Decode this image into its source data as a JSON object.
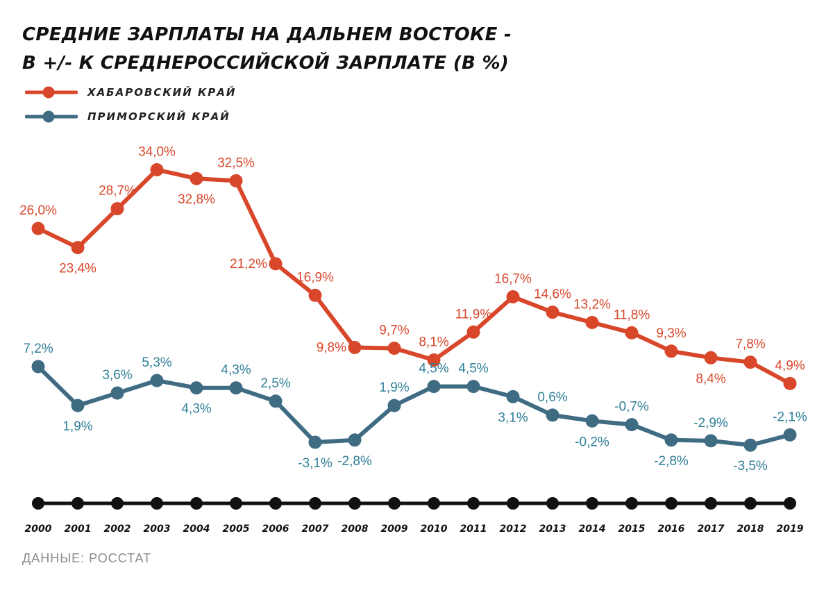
{
  "title_lines": [
    "СРЕДНИЕ ЗАРПЛАТЫ НА ДАЛЬНЕМ ВОСТОКЕ -",
    "В +/- К СРЕДНЕРОССИЙСКОЙ ЗАРПЛАТЕ (В %)"
  ],
  "source": "ДАННЫЕ: РОССТАТ",
  "colors": {
    "khabarovsk": "#d9472b",
    "primorsky": "#3f6b83",
    "axis": "#111111",
    "khabarovsk_label": "#d9472b",
    "primorsky_label": "#2f7f98"
  },
  "chart_data": {
    "type": "line",
    "title": "СРЕДНИЕ ЗАРПЛАТЫ НА ДАЛЬНЕМ ВОСТОКЕ - В +/- К СРЕДНЕРОССИЙСКОЙ ЗАРПЛАТЕ (В %)",
    "categories": [
      "2000",
      "2001",
      "2002",
      "2003",
      "2004",
      "2005",
      "2006",
      "2007",
      "2008",
      "2009",
      "2010",
      "2011",
      "2012",
      "2013",
      "2014",
      "2015",
      "2016",
      "2017",
      "2018",
      "2019"
    ],
    "series": [
      {
        "name": "ХАБАРОВСКИЙ КРАЙ",
        "values": [
          26.0,
          23.4,
          28.7,
          34.0,
          32.8,
          32.5,
          21.2,
          16.9,
          9.8,
          9.7,
          8.1,
          11.9,
          16.7,
          14.6,
          13.2,
          11.8,
          9.3,
          8.4,
          7.8,
          4.9
        ],
        "labels": [
          "26,0%",
          "23,4%",
          "28,7%",
          "34,0%",
          "32,8%",
          "32,5%",
          "21,2%",
          "16,9%",
          "9,8%",
          "9,7%",
          "8,1%",
          "11,9%",
          "16,7%",
          "14,6%",
          "13,2%",
          "11,8%",
          "9,3%",
          "8,4%",
          "7,8%",
          "4,9%"
        ]
      },
      {
        "name": "ПРИМОРСКИЙ КРАЙ",
        "values": [
          7.2,
          1.9,
          3.6,
          5.3,
          4.3,
          4.3,
          2.5,
          -3.1,
          -2.8,
          1.9,
          4.5,
          4.5,
          3.1,
          0.6,
          -0.2,
          -0.7,
          -2.8,
          -2.9,
          -3.5,
          -2.1
        ],
        "labels": [
          "7,2%",
          "1,9%",
          "3,6%",
          "5,3%",
          "4,3%",
          "4,3%",
          "2,5%",
          "-3,1%",
          "-2,8%",
          "1,9%",
          "4,5%",
          "4,5%",
          "3,1%",
          "0,6%",
          "-0,2%",
          "-0,7%",
          "-2,8%",
          "-2,9%",
          "-3,5%",
          "-2,1%"
        ]
      }
    ],
    "legend_position": "top-left",
    "grid": false
  }
}
